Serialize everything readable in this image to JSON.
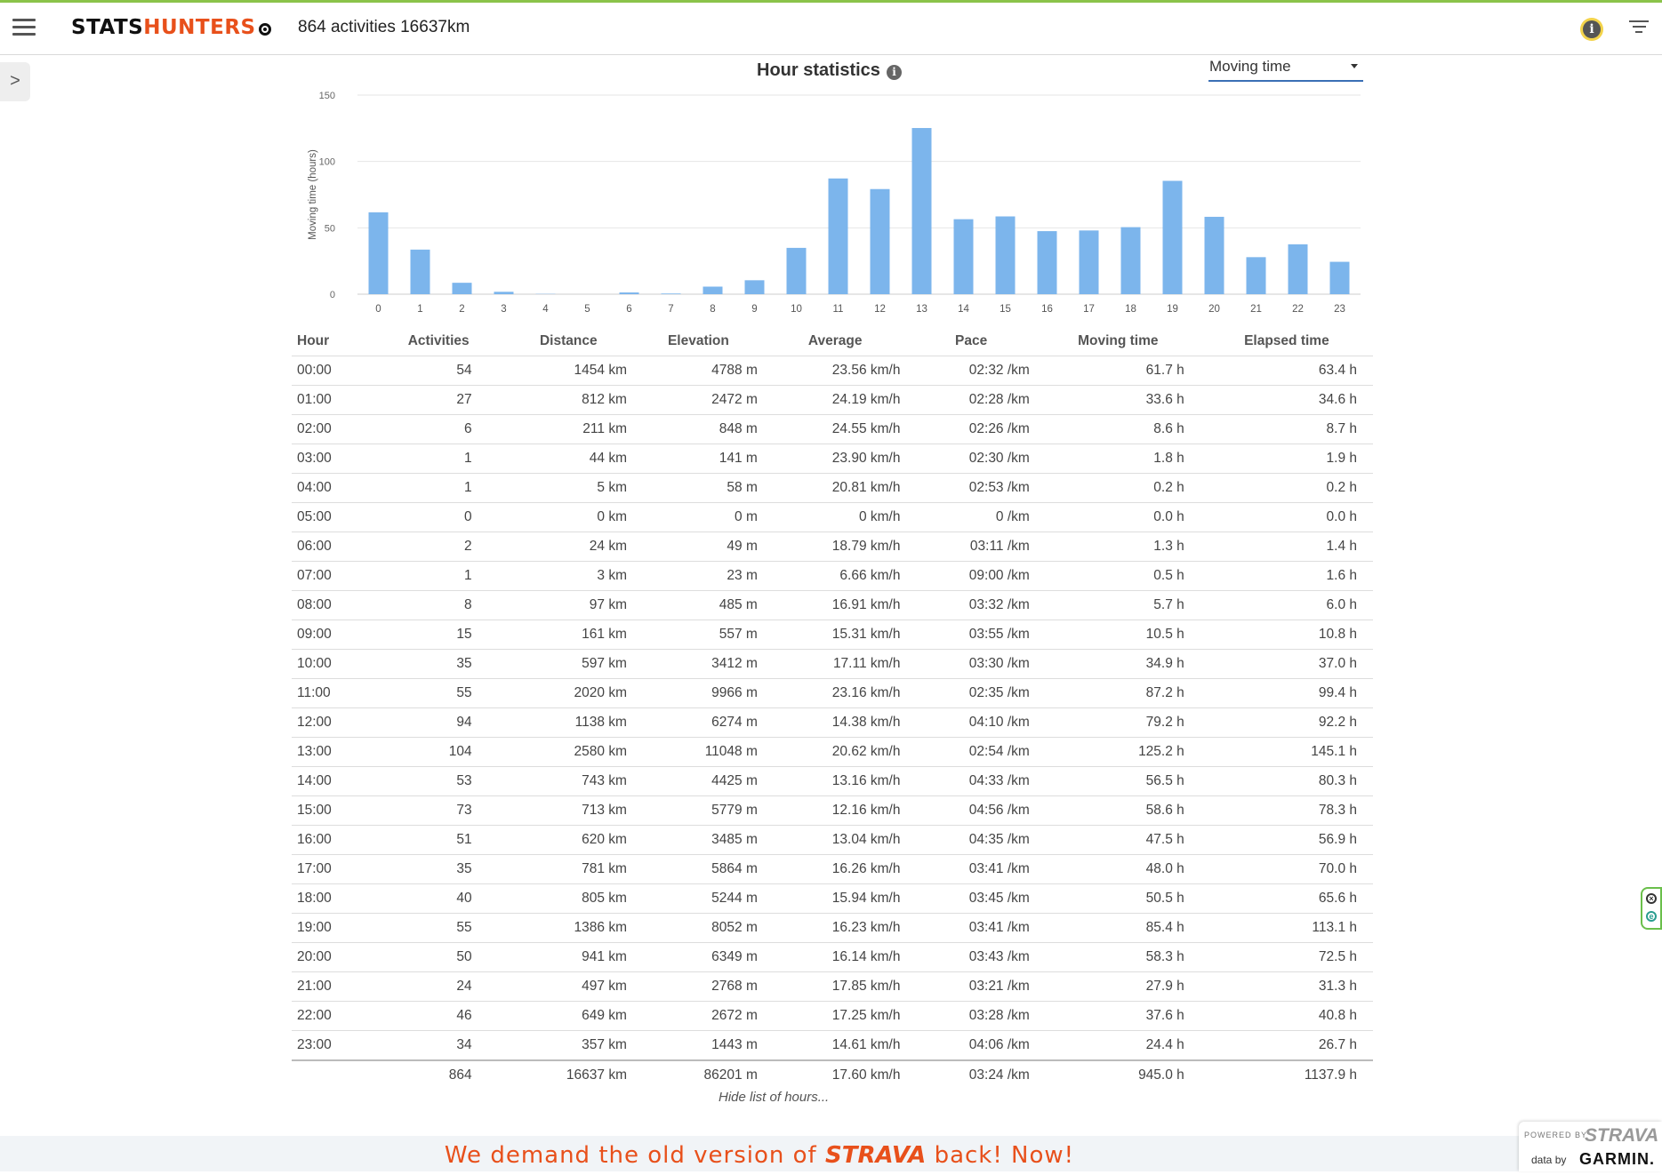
{
  "header": {
    "logo_part1": "STATS",
    "logo_part2": "HUNTERS",
    "summary": "864 activities 16637km",
    "info_icon": "info-icon",
    "filter_icon": "filter-icon",
    "menu_icon": "hamburger-menu-icon"
  },
  "sidebar": {
    "toggle_glyph": ">"
  },
  "chart_section": {
    "title": "Hour statistics",
    "metric_select": {
      "value": "Moving time"
    }
  },
  "colors": {
    "bar": "#7cb5ec",
    "accent": "#e8501b",
    "select_underline": "#3a6fb5"
  },
  "chart_data": {
    "type": "bar",
    "title": "Hour statistics",
    "xlabel": "",
    "ylabel": "Moving time (hours)",
    "categories": [
      "0",
      "1",
      "2",
      "3",
      "4",
      "5",
      "6",
      "7",
      "8",
      "9",
      "10",
      "11",
      "12",
      "13",
      "14",
      "15",
      "16",
      "17",
      "18",
      "19",
      "20",
      "21",
      "22",
      "23"
    ],
    "values": [
      61.7,
      33.6,
      8.6,
      1.8,
      0.2,
      0.0,
      1.3,
      0.5,
      5.7,
      10.5,
      34.9,
      87.2,
      79.2,
      125.2,
      56.5,
      58.6,
      47.5,
      48.0,
      50.5,
      85.4,
      58.3,
      27.9,
      37.6,
      24.4
    ],
    "ylim": [
      0,
      150
    ],
    "yticks": [
      0,
      50,
      100,
      150
    ],
    "grid": true,
    "legend": "none"
  },
  "table": {
    "headers": [
      "Hour",
      "Activities",
      "Distance",
      "Elevation",
      "Average",
      "Pace",
      "Moving time",
      "Elapsed time"
    ],
    "rows": [
      [
        "00:00",
        "54",
        "1454 km",
        "4788 m",
        "23.56 km/h",
        "02:32 /km",
        "61.7 h",
        "63.4 h"
      ],
      [
        "01:00",
        "27",
        "812 km",
        "2472 m",
        "24.19 km/h",
        "02:28 /km",
        "33.6 h",
        "34.6 h"
      ],
      [
        "02:00",
        "6",
        "211 km",
        "848 m",
        "24.55 km/h",
        "02:26 /km",
        "8.6 h",
        "8.7 h"
      ],
      [
        "03:00",
        "1",
        "44 km",
        "141 m",
        "23.90 km/h",
        "02:30 /km",
        "1.8 h",
        "1.9 h"
      ],
      [
        "04:00",
        "1",
        "5 km",
        "58 m",
        "20.81 km/h",
        "02:53 /km",
        "0.2 h",
        "0.2 h"
      ],
      [
        "05:00",
        "0",
        "0 km",
        "0 m",
        "0 km/h",
        "0 /km",
        "0.0 h",
        "0.0 h"
      ],
      [
        "06:00",
        "2",
        "24 km",
        "49 m",
        "18.79 km/h",
        "03:11 /km",
        "1.3 h",
        "1.4 h"
      ],
      [
        "07:00",
        "1",
        "3 km",
        "23 m",
        "6.66 km/h",
        "09:00 /km",
        "0.5 h",
        "1.6 h"
      ],
      [
        "08:00",
        "8",
        "97 km",
        "485 m",
        "16.91 km/h",
        "03:32 /km",
        "5.7 h",
        "6.0 h"
      ],
      [
        "09:00",
        "15",
        "161 km",
        "557 m",
        "15.31 km/h",
        "03:55 /km",
        "10.5 h",
        "10.8 h"
      ],
      [
        "10:00",
        "35",
        "597 km",
        "3412 m",
        "17.11 km/h",
        "03:30 /km",
        "34.9 h",
        "37.0 h"
      ],
      [
        "11:00",
        "55",
        "2020 km",
        "9966 m",
        "23.16 km/h",
        "02:35 /km",
        "87.2 h",
        "99.4 h"
      ],
      [
        "12:00",
        "94",
        "1138 km",
        "6274 m",
        "14.38 km/h",
        "04:10 /km",
        "79.2 h",
        "92.2 h"
      ],
      [
        "13:00",
        "104",
        "2580 km",
        "11048 m",
        "20.62 km/h",
        "02:54 /km",
        "125.2 h",
        "145.1 h"
      ],
      [
        "14:00",
        "53",
        "743 km",
        "4425 m",
        "13.16 km/h",
        "04:33 /km",
        "56.5 h",
        "80.3 h"
      ],
      [
        "15:00",
        "73",
        "713 km",
        "5779 m",
        "12.16 km/h",
        "04:56 /km",
        "58.6 h",
        "78.3 h"
      ],
      [
        "16:00",
        "51",
        "620 km",
        "3485 m",
        "13.04 km/h",
        "04:35 /km",
        "47.5 h",
        "56.9 h"
      ],
      [
        "17:00",
        "35",
        "781 km",
        "5864 m",
        "16.26 km/h",
        "03:41 /km",
        "48.0 h",
        "70.0 h"
      ],
      [
        "18:00",
        "40",
        "805 km",
        "5244 m",
        "15.94 km/h",
        "03:45 /km",
        "50.5 h",
        "65.6 h"
      ],
      [
        "19:00",
        "55",
        "1386 km",
        "8052 m",
        "16.23 km/h",
        "03:41 /km",
        "85.4 h",
        "113.1 h"
      ],
      [
        "20:00",
        "50",
        "941 km",
        "6349 m",
        "16.14 km/h",
        "03:43 /km",
        "58.3 h",
        "72.5 h"
      ],
      [
        "21:00",
        "24",
        "497 km",
        "2768 m",
        "17.85 km/h",
        "03:21 /km",
        "27.9 h",
        "31.3 h"
      ],
      [
        "22:00",
        "46",
        "649 km",
        "2672 m",
        "17.25 km/h",
        "03:28 /km",
        "37.6 h",
        "40.8 h"
      ],
      [
        "23:00",
        "34",
        "357 km",
        "1443 m",
        "14.61 km/h",
        "04:06 /km",
        "24.4 h",
        "26.7 h"
      ]
    ],
    "totals": [
      "",
      "864",
      "16637 km",
      "86201 m",
      "17.60 km/h",
      "03:24 /km",
      "945.0 h",
      "1137.9 h"
    ],
    "hide_link": "Hide list of hours..."
  },
  "banner": {
    "before": "We demand the old version of ",
    "brand": "STRAVA",
    "after": " back! Now!"
  },
  "powered": {
    "powered_by": "POWERED BY",
    "strava": "STRAVA",
    "data_by": "data by",
    "garmin": "GARMIN."
  }
}
